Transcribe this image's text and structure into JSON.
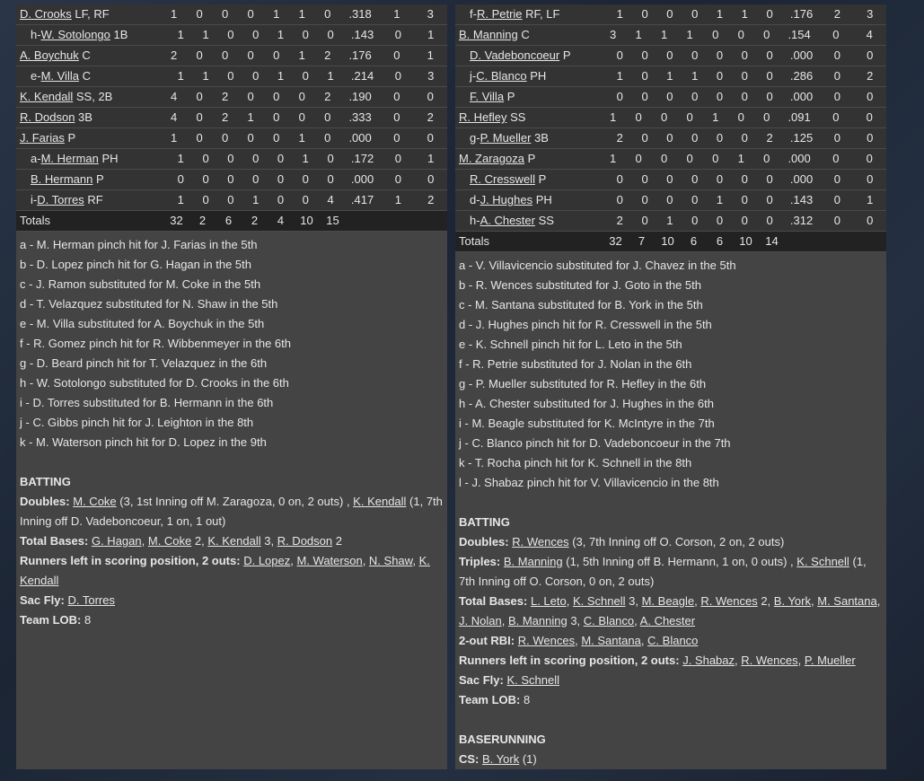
{
  "left": {
    "rows": [
      {
        "prefix": "",
        "name": "D. Crooks",
        "pos": "LF, RF",
        "indent": false,
        "stats": [
          "1",
          "0",
          "0",
          "0",
          "1",
          "1",
          "0",
          ".318",
          "1",
          "3"
        ]
      },
      {
        "prefix": "h-",
        "name": "W. Sotolongo",
        "pos": "1B",
        "indent": true,
        "stats": [
          "1",
          "1",
          "0",
          "0",
          "1",
          "0",
          "0",
          ".143",
          "0",
          "1"
        ]
      },
      {
        "prefix": "",
        "name": "A. Boychuk",
        "pos": "C",
        "indent": false,
        "stats": [
          "2",
          "0",
          "0",
          "0",
          "0",
          "1",
          "2",
          ".176",
          "0",
          "1"
        ]
      },
      {
        "prefix": "e-",
        "name": "M. Villa",
        "pos": "C",
        "indent": true,
        "stats": [
          "1",
          "1",
          "0",
          "0",
          "1",
          "0",
          "1",
          ".214",
          "0",
          "3"
        ]
      },
      {
        "prefix": "",
        "name": "K. Kendall",
        "pos": "SS, 2B",
        "indent": false,
        "stats": [
          "4",
          "0",
          "2",
          "0",
          "0",
          "0",
          "2",
          ".190",
          "0",
          "0"
        ]
      },
      {
        "prefix": "",
        "name": "R. Dodson",
        "pos": "3B",
        "indent": false,
        "stats": [
          "4",
          "0",
          "2",
          "1",
          "0",
          "0",
          "0",
          ".333",
          "0",
          "2"
        ]
      },
      {
        "prefix": "",
        "name": "J. Farias",
        "pos": "P",
        "indent": false,
        "stats": [
          "1",
          "0",
          "0",
          "0",
          "0",
          "1",
          "0",
          ".000",
          "0",
          "0"
        ]
      },
      {
        "prefix": "a-",
        "name": "M. Herman",
        "pos": "PH",
        "indent": true,
        "stats": [
          "1",
          "0",
          "0",
          "0",
          "0",
          "1",
          "0",
          ".172",
          "0",
          "1"
        ]
      },
      {
        "prefix": "",
        "name": "B. Hermann",
        "pos": "P",
        "indent": true,
        "stats": [
          "0",
          "0",
          "0",
          "0",
          "0",
          "0",
          "0",
          ".000",
          "0",
          "0"
        ]
      },
      {
        "prefix": "i-",
        "name": "D. Torres",
        "pos": "RF",
        "indent": true,
        "stats": [
          "1",
          "0",
          "0",
          "1",
          "0",
          "0",
          "4",
          ".417",
          "1",
          "2"
        ]
      }
    ],
    "totals": {
      "label": "Totals",
      "stats": [
        "32",
        "2",
        "6",
        "2",
        "4",
        "10",
        "15"
      ]
    },
    "subs": [
      "a - M. Herman pinch hit for J. Farias in the 5th",
      "b - D. Lopez pinch hit for G. Hagan in the 5th",
      "c - J. Ramon substituted for M. Coke in the 5th",
      "d - T. Velazquez substituted for N. Shaw in the 5th",
      "e - M. Villa substituted for A. Boychuk in the 5th",
      "f - R. Gomez pinch hit for R. Wibbenmeyer in the 6th",
      "g - D. Beard pinch hit for T. Velazquez in the 6th",
      "h - W. Sotolongo substituted for D. Crooks in the 6th",
      "i - D. Torres substituted for B. Hermann in the 6th",
      "j - C. Gibbs pinch hit for J. Leighton in the 8th",
      "k - M. Waterson pinch hit for D. Lopez in the 9th"
    ],
    "sections": [
      {
        "heading": "BATTING",
        "lines": [
          {
            "label": "Doubles:",
            "parts": [
              {
                "t": "M. Coke",
                "link": true
              },
              {
                "t": " (3, 1st Inning off M. Zaragoza, 0 on, 2 outs) , "
              },
              {
                "t": "K. Kendall",
                "link": true
              },
              {
                "t": " (1, 7th Inning off D. Vadeboncoeur, 1 on, 1 out)"
              }
            ]
          },
          {
            "label": "Total Bases:",
            "parts": [
              {
                "t": "G. Hagan",
                "link": true
              },
              {
                "t": ", "
              },
              {
                "t": "M. Coke",
                "link": true
              },
              {
                "t": " 2, "
              },
              {
                "t": "K. Kendall",
                "link": true
              },
              {
                "t": " 3, "
              },
              {
                "t": "R. Dodson",
                "link": true
              },
              {
                "t": " 2"
              }
            ]
          },
          {
            "label": "Runners left in scoring position, 2 outs:",
            "parts": [
              {
                "t": "D. Lopez",
                "link": true
              },
              {
                "t": ", "
              },
              {
                "t": "M. Waterson",
                "link": true
              },
              {
                "t": ", "
              },
              {
                "t": "N. Shaw",
                "link": true
              },
              {
                "t": ", "
              },
              {
                "t": "K. Kendall",
                "link": true
              }
            ]
          },
          {
            "label": "Sac Fly:",
            "parts": [
              {
                "t": "D. Torres",
                "link": true
              }
            ]
          },
          {
            "label": "Team LOB:",
            "parts": [
              {
                "t": "8"
              }
            ]
          }
        ]
      }
    ]
  },
  "right": {
    "rows": [
      {
        "prefix": "f-",
        "name": "R. Petrie",
        "pos": "RF, LF",
        "indent": true,
        "stats": [
          "1",
          "0",
          "0",
          "0",
          "1",
          "1",
          "0",
          ".176",
          "2",
          "3"
        ]
      },
      {
        "prefix": "",
        "name": "B. Manning",
        "pos": "C",
        "indent": false,
        "stats": [
          "3",
          "1",
          "1",
          "1",
          "0",
          "0",
          "0",
          ".154",
          "0",
          "4"
        ]
      },
      {
        "prefix": "",
        "name": "D. Vadeboncoeur",
        "pos": "P",
        "indent": true,
        "stats": [
          "0",
          "0",
          "0",
          "0",
          "0",
          "0",
          "0",
          ".000",
          "0",
          "0"
        ]
      },
      {
        "prefix": "j-",
        "name": "C. Blanco",
        "pos": "PH",
        "indent": true,
        "stats": [
          "1",
          "0",
          "1",
          "1",
          "0",
          "0",
          "0",
          ".286",
          "0",
          "2"
        ]
      },
      {
        "prefix": "",
        "name": "F. Villa",
        "pos": "P",
        "indent": true,
        "stats": [
          "0",
          "0",
          "0",
          "0",
          "0",
          "0",
          "0",
          ".000",
          "0",
          "0"
        ]
      },
      {
        "prefix": "",
        "name": "R. Hefley",
        "pos": "SS",
        "indent": false,
        "stats": [
          "1",
          "0",
          "0",
          "0",
          "1",
          "0",
          "0",
          ".091",
          "0",
          "0"
        ]
      },
      {
        "prefix": "g-",
        "name": "P. Mueller",
        "pos": "3B",
        "indent": true,
        "stats": [
          "2",
          "0",
          "0",
          "0",
          "0",
          "0",
          "2",
          ".125",
          "0",
          "0"
        ]
      },
      {
        "prefix": "",
        "name": "M. Zaragoza",
        "pos": "P",
        "indent": false,
        "stats": [
          "1",
          "0",
          "0",
          "0",
          "0",
          "1",
          "0",
          ".000",
          "0",
          "0"
        ]
      },
      {
        "prefix": "",
        "name": "R. Cresswell",
        "pos": "P",
        "indent": true,
        "stats": [
          "0",
          "0",
          "0",
          "0",
          "0",
          "0",
          "0",
          ".000",
          "0",
          "0"
        ]
      },
      {
        "prefix": "d-",
        "name": "J. Hughes",
        "pos": "PH",
        "indent": true,
        "stats": [
          "0",
          "0",
          "0",
          "0",
          "1",
          "0",
          "0",
          ".143",
          "0",
          "1"
        ]
      },
      {
        "prefix": "h-",
        "name": "A. Chester",
        "pos": "SS",
        "indent": true,
        "stats": [
          "2",
          "0",
          "1",
          "0",
          "0",
          "0",
          "0",
          ".312",
          "0",
          "0"
        ]
      }
    ],
    "totals": {
      "label": "Totals",
      "stats": [
        "32",
        "7",
        "10",
        "6",
        "6",
        "10",
        "14"
      ]
    },
    "subs": [
      "a - V. Villavicencio substituted for J. Chavez in the 5th",
      "b - R. Wences substituted for J. Goto in the 5th",
      "c - M. Santana substituted for B. York in the 5th",
      "d - J. Hughes pinch hit for R. Cresswell in the 5th",
      "e - K. Schnell pinch hit for L. Leto in the 5th",
      "f - R. Petrie substituted for J. Nolan in the 6th",
      "g - P. Mueller substituted for R. Hefley in the 6th",
      "h - A. Chester substituted for J. Hughes in the 6th",
      "i - M. Beagle substituted for K. McIntyre in the 7th",
      "j - C. Blanco pinch hit for D. Vadeboncoeur in the 7th",
      "k - T. Rocha pinch hit for K. Schnell in the 8th",
      "l - J. Shabaz pinch hit for V. Villavicencio in the 8th"
    ],
    "sections": [
      {
        "heading": "BATTING",
        "lines": [
          {
            "label": "Doubles:",
            "parts": [
              {
                "t": "R. Wences",
                "link": true
              },
              {
                "t": " (3, 7th Inning off O. Corson, 2 on, 2 outs)"
              }
            ]
          },
          {
            "label": "Triples:",
            "parts": [
              {
                "t": "B. Manning",
                "link": true
              },
              {
                "t": " (1, 5th Inning off B. Hermann, 1 on, 0 outs) , "
              },
              {
                "t": "K. Schnell",
                "link": true
              },
              {
                "t": " (1, 7th Inning off O. Corson, 0 on, 2 outs)"
              }
            ]
          },
          {
            "label": "Total Bases:",
            "parts": [
              {
                "t": "L. Leto",
                "link": true
              },
              {
                "t": ", "
              },
              {
                "t": "K. Schnell",
                "link": true
              },
              {
                "t": " 3, "
              },
              {
                "t": "M. Beagle",
                "link": true
              },
              {
                "t": ", "
              },
              {
                "t": "R. Wences",
                "link": true
              },
              {
                "t": " 2, "
              },
              {
                "t": "B. York",
                "link": true
              },
              {
                "t": ", "
              },
              {
                "t": "M. Santana",
                "link": true
              },
              {
                "t": ", "
              },
              {
                "t": "J. Nolan",
                "link": true
              },
              {
                "t": ", "
              },
              {
                "t": "B. Manning",
                "link": true
              },
              {
                "t": " 3, "
              },
              {
                "t": "C. Blanco",
                "link": true
              },
              {
                "t": ", "
              },
              {
                "t": "A. Chester",
                "link": true
              }
            ]
          },
          {
            "label": "2-out RBI:",
            "parts": [
              {
                "t": "R. Wences",
                "link": true
              },
              {
                "t": ", "
              },
              {
                "t": "M. Santana",
                "link": true
              },
              {
                "t": ", "
              },
              {
                "t": "C. Blanco",
                "link": true
              }
            ]
          },
          {
            "label": "Runners left in scoring position, 2 outs:",
            "parts": [
              {
                "t": "J. Shabaz",
                "link": true
              },
              {
                "t": ", "
              },
              {
                "t": "R. Wences",
                "link": true
              },
              {
                "t": ", "
              },
              {
                "t": "P. Mueller",
                "link": true
              }
            ]
          },
          {
            "label": "Sac Fly:",
            "parts": [
              {
                "t": "K. Schnell",
                "link": true
              }
            ]
          },
          {
            "label": "Team LOB:",
            "parts": [
              {
                "t": "8"
              }
            ]
          }
        ]
      },
      {
        "heading": "BASERUNNING",
        "lines": [
          {
            "label": "CS:",
            "parts": [
              {
                "t": "B. York",
                "link": true
              },
              {
                "t": " (1)"
              }
            ]
          }
        ]
      }
    ]
  }
}
